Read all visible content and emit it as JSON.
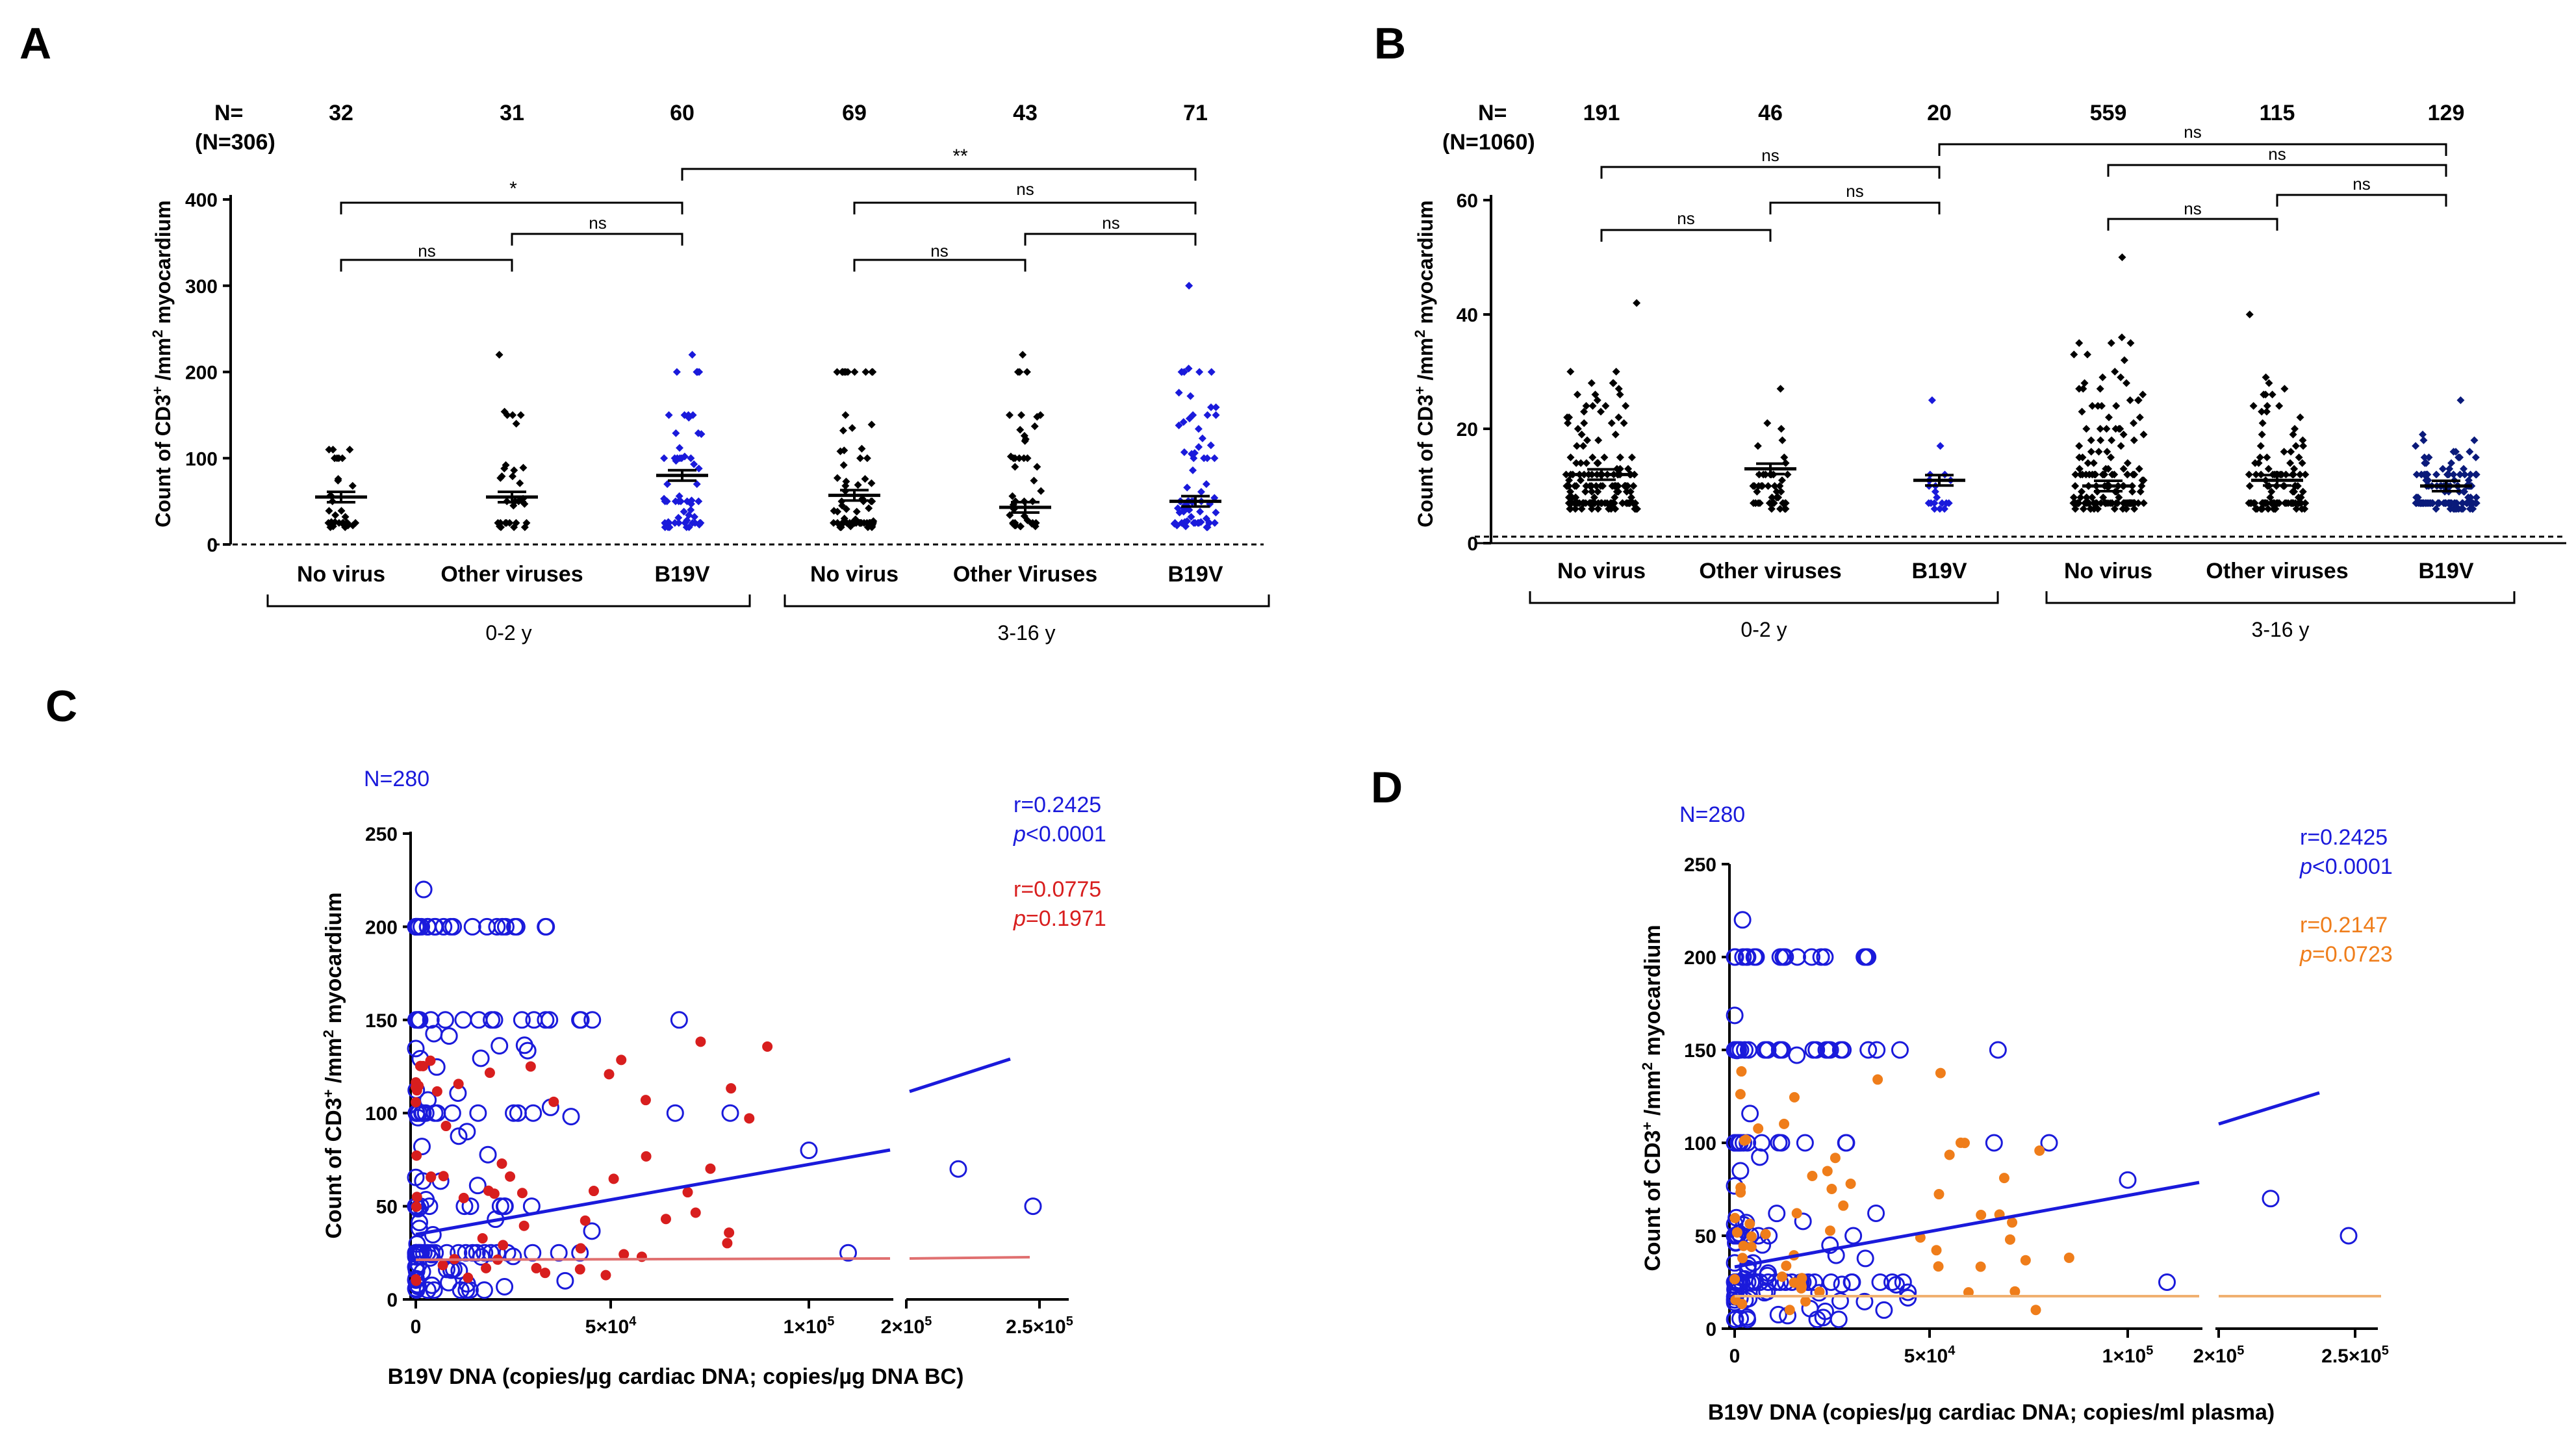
{
  "colors": {
    "black": "#000000",
    "blue": "#1a1adb",
    "red": "#d81e1e",
    "orange": "#ef7d1a",
    "orange_line": "#f0b070",
    "red_line": "#e07070"
  },
  "panelA": {
    "letter": "A",
    "n_label": "N=",
    "n_total": "(N=306)",
    "ns": [
      "32",
      "31",
      "60",
      "69",
      "43",
      "71"
    ],
    "ylabel_main": "Count of CD3",
    "ylabel_sup1": "+",
    "ylabel_mid": " /mm",
    "ylabel_sup2": "2",
    "ylabel_end": " myocardium",
    "ylim": [
      0,
      400
    ],
    "yticks": [
      "0",
      "100",
      "200",
      "300",
      "400"
    ],
    "groups": [
      "No virus",
      "Other viruses",
      "B19V",
      "No virus",
      "Other Viruses",
      "B19V"
    ],
    "age_groups": [
      "0-2 y",
      "3-16 y"
    ],
    "sig": [
      "ns",
      "ns",
      "*",
      "ns",
      "ns",
      "ns",
      "**"
    ],
    "means": [
      55,
      55,
      80,
      57,
      43,
      50
    ]
  },
  "panelB": {
    "letter": "B",
    "n_label": "N=",
    "n_total": "(N=1060)",
    "ns": [
      "191",
      "46",
      "20",
      "559",
      "115",
      "129"
    ],
    "ylabel_main": "Count of CD3",
    "ylabel_sup1": "+",
    "ylabel_mid": " /mm",
    "ylabel_sup2": "2",
    "ylabel_end": " myocardium",
    "ylim": [
      0,
      60
    ],
    "yticks": [
      "0",
      "20",
      "40",
      "60"
    ],
    "groups": [
      "No virus",
      "Other viruses",
      "B19V",
      "No virus",
      "Other viruses",
      "B19V"
    ],
    "age_groups": [
      "0-2 y",
      "3-16 y"
    ],
    "sig": [
      "ns",
      "ns",
      "ns",
      "ns",
      "ns",
      "ns",
      "ns"
    ],
    "means": [
      12,
      13,
      11,
      10,
      11,
      10
    ]
  },
  "panelC": {
    "letter": "C",
    "n_text": "N=280",
    "r1": "r=0.2425",
    "p1_prefix": "p",
    "p1_rest": "<0.0001",
    "r2": "r=0.0775",
    "p2_prefix": "p",
    "p2_rest": "=0.1971",
    "xlabel": "B19V DNA (copies/µg cardiac DNA; copies/µg DNA BC)",
    "ylabel_main": "Count of CD3",
    "ylabel_sup1": "+",
    "ylabel_mid": " /mm",
    "ylabel_sup2": "2",
    "ylabel_end": " myocardium",
    "ylim": [
      0,
      250
    ],
    "yticks": [
      "0",
      "50",
      "100",
      "150",
      "200",
      "250"
    ],
    "xticks": [
      "0",
      "5×10",
      "1×10",
      "2×10",
      "2.5×10"
    ],
    "xtick_exps": [
      "",
      "4",
      "5",
      "5",
      "5"
    ]
  },
  "panelD": {
    "letter": "D",
    "n_text": "N=280",
    "r1": "r=0.2425",
    "p1_prefix": "p",
    "p1_rest": "<0.0001",
    "r2": "r=0.2147",
    "p2_prefix": "p",
    "p2_rest": "=0.0723",
    "xlabel": "B19V DNA (copies/µg cardiac DNA; copies/ml plasma)",
    "ylabel_main": "Count of CD3",
    "ylabel_sup1": "+",
    "ylabel_mid": " /mm",
    "ylabel_sup2": "2",
    "ylabel_end": " myocardium",
    "ylim": [
      0,
      250
    ],
    "yticks": [
      "0",
      "50",
      "100",
      "150",
      "200",
      "250"
    ],
    "xticks": [
      "0",
      "5×10",
      "1×10",
      "2×10",
      "2.5×10"
    ],
    "xtick_exps": [
      "",
      "4",
      "5",
      "5",
      "5"
    ]
  },
  "chart_data": [
    {
      "type": "scatter",
      "title": "A",
      "ylabel": "Count of CD3+ /mm2 myocardium",
      "categories": [
        "No virus (0-2 y)",
        "Other viruses (0-2 y)",
        "B19V (0-2 y)",
        "No virus (3-16 y)",
        "Other Viruses (3-16 y)",
        "B19V (3-16 y)"
      ],
      "n": [
        32,
        31,
        60,
        69,
        43,
        71
      ],
      "means": [
        55,
        55,
        80,
        57,
        43,
        50
      ],
      "max_values": [
        110,
        220,
        220,
        200,
        220,
        300
      ],
      "ylim": [
        0,
        400
      ]
    },
    {
      "type": "scatter",
      "title": "B",
      "ylabel": "Count of CD3+ /mm2 myocardium",
      "categories": [
        "No virus (0-2 y)",
        "Other viruses (0-2 y)",
        "B19V (0-2 y)",
        "No virus (3-16 y)",
        "Other viruses (3-16 y)",
        "B19V (3-16 y)"
      ],
      "n": [
        191,
        46,
        20,
        559,
        115,
        129
      ],
      "means": [
        12,
        13,
        11,
        10,
        11,
        10
      ],
      "max_values": [
        42,
        27,
        25,
        50,
        40,
        25
      ],
      "ylim": [
        0,
        60
      ]
    },
    {
      "type": "scatter",
      "title": "C",
      "xlabel": "B19V DNA (copies/µg cardiac DNA; copies/µg DNA BC)",
      "ylabel": "Count of CD3+ /mm2 myocardium",
      "series": [
        {
          "name": "cardiac DNA (blue, open)",
          "r": 0.2425,
          "p": "<0.0001",
          "fit": [
            [
              0,
              35
            ],
            [
              120000,
              80
            ]
          ],
          "fit_broken": [
            [
              190000,
              112
            ],
            [
              240000,
              128
            ]
          ]
        },
        {
          "name": "DNA BC (red, filled)",
          "r": 0.0775,
          "p": "0.1971",
          "fit": [
            [
              0,
              21
            ],
            [
              120000,
              22
            ]
          ],
          "fit_broken": [
            [
              190000,
              22
            ],
            [
              245000,
              23
            ]
          ]
        }
      ],
      "ylim": [
        0,
        250
      ]
    },
    {
      "type": "scatter",
      "title": "D",
      "xlabel": "B19V DNA (copies/µg cardiac DNA; copies/ml plasma)",
      "ylabel": "Count of CD3+ /mm2 myocardium",
      "series": [
        {
          "name": "cardiac DNA (blue, open)",
          "r": 0.2425,
          "p": "<0.0001",
          "fit": [
            [
              0,
              35
            ],
            [
              120000,
              80
            ]
          ],
          "fit_broken": [
            [
              190000,
              112
            ],
            [
              240000,
              128
            ]
          ]
        },
        {
          "name": "plasma (orange, filled)",
          "r": 0.2147,
          "p": "0.0723",
          "fit": [
            [
              0,
              18
            ],
            [
              120000,
              18
            ]
          ],
          "fit_broken": [
            [
              190000,
              18
            ],
            [
              265000,
              18
            ]
          ]
        }
      ],
      "ylim": [
        0,
        250
      ]
    }
  ]
}
